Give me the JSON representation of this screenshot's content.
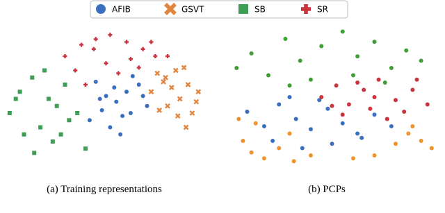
{
  "chart_data": [
    {
      "type": "scatter",
      "caption": "(a) Training representations",
      "xlim": [
        0,
        100
      ],
      "ylim": [
        0,
        100
      ],
      "series": [
        {
          "name": "AFIB",
          "color": "#3a6fbf",
          "marker": "circle",
          "x": [
            42,
            48,
            55,
            60,
            66,
            70,
            45,
            52,
            58,
            63,
            50,
            57,
            62,
            68,
            47,
            54
          ],
          "values": [
            35,
            42,
            48,
            55,
            60,
            45,
            62,
            30,
            38,
            66,
            52,
            25,
            40,
            52,
            50,
            58
          ]
        },
        {
          "name": "GSVT",
          "color": "#e2853f",
          "marker": "x",
          "x": [
            72,
            78,
            84,
            90,
            95,
            80,
            86,
            92,
            75,
            88,
            82,
            94,
            76,
            89,
            85,
            79
          ],
          "values": [
            55,
            62,
            70,
            60,
            55,
            45,
            50,
            40,
            68,
            72,
            58,
            48,
            42,
            30,
            38,
            65
          ]
        },
        {
          "name": "SB",
          "color": "#3f9e56",
          "marker": "square",
          "x": [
            3,
            8,
            14,
            20,
            26,
            32,
            10,
            18,
            24,
            30,
            36,
            6,
            15,
            28,
            40,
            22
          ],
          "values": [
            40,
            55,
            65,
            70,
            45,
            35,
            25,
            30,
            20,
            60,
            40,
            50,
            12,
            25,
            15,
            50
          ]
        },
        {
          "name": "SR",
          "color": "#c9343f",
          "marker": "plus",
          "x": [
            30,
            38,
            45,
            52,
            60,
            68,
            74,
            35,
            50,
            62,
            40,
            56,
            66,
            44,
            72,
            80
          ],
          "values": [
            80,
            88,
            92,
            95,
            90,
            85,
            80,
            70,
            75,
            78,
            60,
            68,
            72,
            85,
            90,
            80
          ]
        }
      ]
    },
    {
      "type": "scatter",
      "caption": "(b) PCPs",
      "xlim": [
        0,
        100
      ],
      "ylim": [
        0,
        100
      ],
      "series": [
        {
          "color": "#3a6fbf",
          "marker": "circle",
          "x": [
            10,
            18,
            25,
            33,
            40,
            48,
            55,
            62,
            70,
            78,
            22,
            36,
            50,
            64,
            44,
            30
          ],
          "values": [
            40,
            30,
            45,
            35,
            28,
            42,
            32,
            25,
            38,
            30,
            20,
            15,
            18,
            22,
            48,
            50
          ]
        },
        {
          "color": "#f0922b",
          "marker": "circle",
          "x": [
            8,
            12,
            18,
            25,
            32,
            40,
            14,
            30,
            80,
            86,
            92,
            97,
            88,
            60,
            6,
            70
          ],
          "values": [
            20,
            12,
            8,
            15,
            6,
            10,
            32,
            25,
            18,
            25,
            20,
            15,
            30,
            8,
            35,
            10
          ]
        },
        {
          "color": "#3f9e35",
          "marker": "circle",
          "x": [
            5,
            12,
            20,
            28,
            35,
            45,
            55,
            62,
            70,
            78,
            85,
            92,
            40,
            60,
            30,
            75
          ],
          "values": [
            70,
            80,
            65,
            90,
            75,
            85,
            95,
            78,
            88,
            70,
            82,
            75,
            62,
            65,
            58,
            60
          ]
        },
        {
          "color": "#c9343f",
          "marker": "circle",
          "x": [
            45,
            52,
            58,
            65,
            72,
            80,
            88,
            95,
            55,
            68,
            84,
            76,
            62,
            90,
            50,
            70
          ],
          "values": [
            50,
            58,
            45,
            55,
            62,
            48,
            55,
            45,
            38,
            42,
            40,
            35,
            60,
            62,
            44,
            50
          ]
        }
      ]
    }
  ]
}
